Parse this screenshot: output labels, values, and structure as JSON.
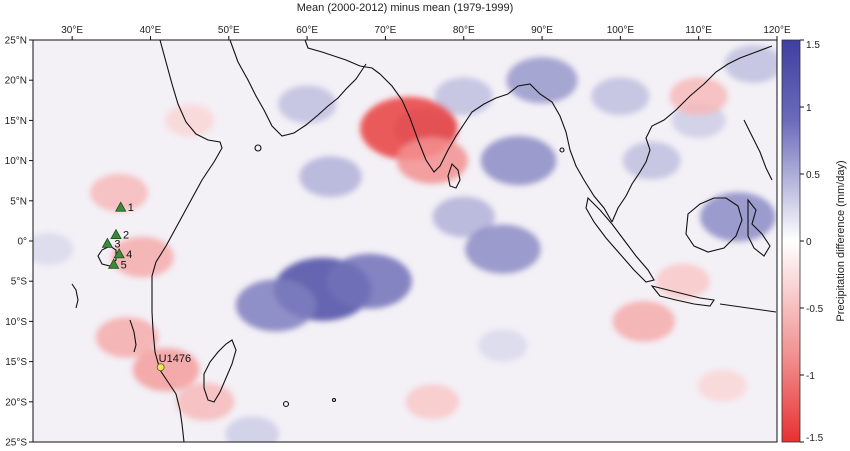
{
  "title": "Mean (2000-2012) minus mean (1979-1999)",
  "lon_ticks": [
    "30°E",
    "40°E",
    "50°E",
    "60°E",
    "70°E",
    "80°E",
    "90°E",
    "100°E",
    "110°E",
    "120°E"
  ],
  "lat_ticks": [
    "25°N",
    "20°N",
    "15°N",
    "10°N",
    "5°N",
    "0°",
    "5°S",
    "10°S",
    "15°S",
    "20°S",
    "25°S"
  ],
  "colorbar": {
    "label": "Precipitation difference (mm/day)",
    "ticks": [
      "1.5",
      "1",
      "0.5",
      "0",
      "-0.5",
      "-1",
      "-1.5"
    ],
    "colors": {
      "max": "#3f3fa0",
      "zero": "#ffffff",
      "min": "#e83030"
    }
  },
  "sites": [
    {
      "label": "1",
      "marker": "triangle",
      "color": "#3a8a3a"
    },
    {
      "label": "2",
      "marker": "triangle",
      "color": "#3a8a3a"
    },
    {
      "label": "3",
      "marker": "triangle",
      "color": "#3a8a3a"
    },
    {
      "label": "4",
      "marker": "triangle",
      "color": "#3a8a3a"
    },
    {
      "label": "5",
      "marker": "triangle",
      "color": "#3a8a3a"
    },
    {
      "label": "U1476",
      "marker": "circle",
      "color": "#f2e64a"
    }
  ],
  "chart_data": {
    "type": "heatmap",
    "title": "Mean (2000-2012) minus mean (1979-1999)",
    "x_range": [
      25,
      120
    ],
    "y_range": [
      -25,
      25
    ],
    "value_range": [
      -1.5,
      1.5
    ],
    "value_label": "Precipitation difference (mm/day)",
    "anomalies": [
      {
        "lon": 62,
        "lat": -6,
        "value": 1.4
      },
      {
        "lon": 56,
        "lat": -8,
        "value": 1.0
      },
      {
        "lon": 68,
        "lat": -5,
        "value": 1.1
      },
      {
        "lon": 63,
        "lat": 8,
        "value": 0.6
      },
      {
        "lon": 60,
        "lat": 17,
        "value": 0.5
      },
      {
        "lon": 80,
        "lat": 3,
        "value": 0.6
      },
      {
        "lon": 85,
        "lat": -1,
        "value": 0.9
      },
      {
        "lon": 87,
        "lat": 10,
        "value": 0.9
      },
      {
        "lon": 90,
        "lat": 20,
        "value": 0.8
      },
      {
        "lon": 80,
        "lat": 18,
        "value": 0.5
      },
      {
        "lon": 75,
        "lat": 14,
        "value": 0.6
      },
      {
        "lon": 115,
        "lat": 3,
        "value": 0.9
      },
      {
        "lon": 104,
        "lat": 10,
        "value": 0.5
      },
      {
        "lon": 100,
        "lat": 18,
        "value": 0.5
      },
      {
        "lon": 110,
        "lat": 15,
        "value": 0.4
      },
      {
        "lon": 117,
        "lat": 22,
        "value": 0.5
      },
      {
        "lon": 85,
        "lat": -13,
        "value": 0.3
      },
      {
        "lon": 53,
        "lat": -24,
        "value": 0.4
      },
      {
        "lon": 27,
        "lat": -1,
        "value": 0.3
      },
      {
        "lon": 73,
        "lat": 14,
        "value": -1.4
      },
      {
        "lon": 76,
        "lat": 10,
        "value": -0.8
      },
      {
        "lon": 39,
        "lat": -2,
        "value": -0.6
      },
      {
        "lon": 36,
        "lat": 6,
        "value": -0.5
      },
      {
        "lon": 37,
        "lat": -12,
        "value": -0.6
      },
      {
        "lon": 42,
        "lat": -16,
        "value": -0.7
      },
      {
        "lon": 47,
        "lat": -20,
        "value": -0.5
      },
      {
        "lon": 103,
        "lat": -10,
        "value": -0.6
      },
      {
        "lon": 108,
        "lat": -5,
        "value": -0.4
      },
      {
        "lon": 110,
        "lat": 18,
        "value": -0.5
      },
      {
        "lon": 76,
        "lat": -20,
        "value": -0.4
      },
      {
        "lon": 113,
        "lat": -18,
        "value": -0.3
      },
      {
        "lon": 45,
        "lat": 15,
        "value": -0.3
      }
    ]
  }
}
